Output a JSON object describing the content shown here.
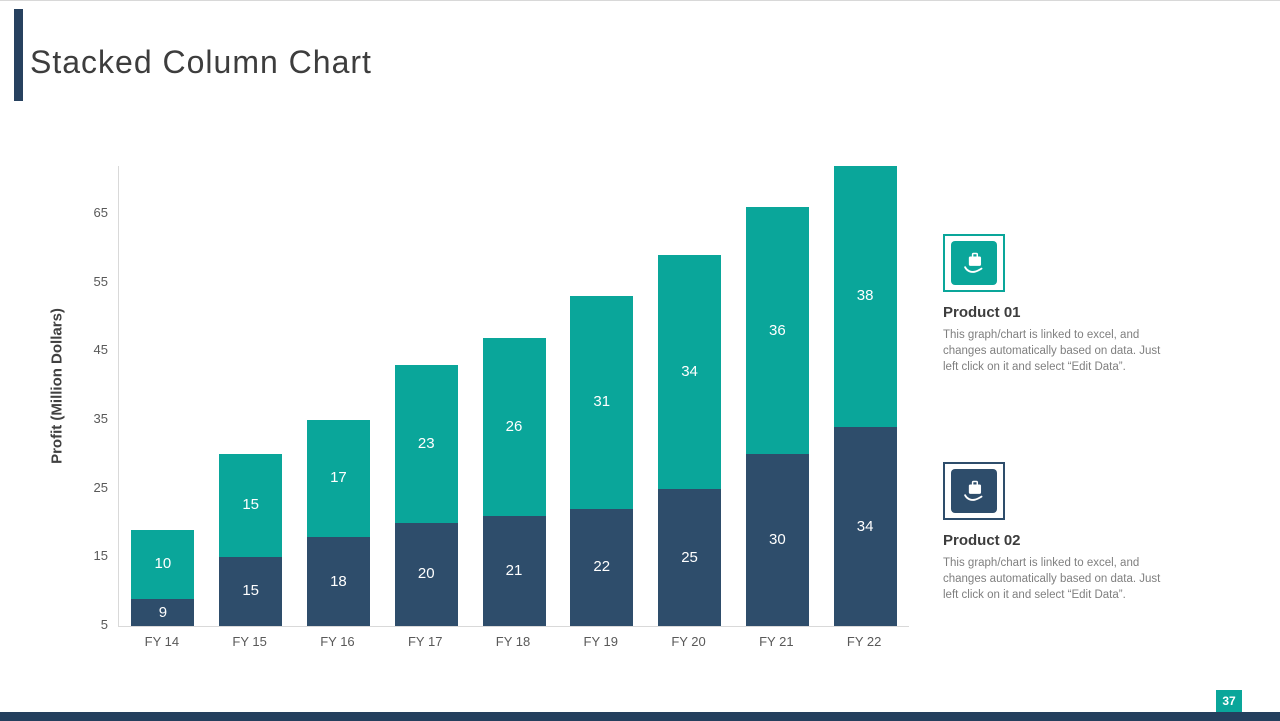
{
  "slide": {
    "title": "Stacked Column Chart",
    "page_number": "37"
  },
  "chart_data": {
    "type": "bar",
    "stacked": true,
    "title": "",
    "ylabel": "Profit  (Million Dollars)",
    "xlabel": "",
    "categories": [
      "FY 14",
      "FY 15",
      "FY 16",
      "FY 17",
      "FY 18",
      "FY 19",
      "FY 20",
      "FY 21",
      "FY 22"
    ],
    "series": [
      {
        "name": "Product 02",
        "color": "#2e4d6b",
        "values": [
          9,
          15,
          18,
          20,
          21,
          22,
          25,
          30,
          34
        ]
      },
      {
        "name": "Product 01",
        "color": "#0aa69a",
        "values": [
          10,
          15,
          17,
          23,
          26,
          31,
          34,
          36,
          38
        ]
      }
    ],
    "y_ticks": [
      5,
      15,
      25,
      35,
      45,
      55,
      65
    ],
    "y_min": 5,
    "y_max": 72,
    "grid": false,
    "legend_position": "right",
    "data_labels": true
  },
  "legend": {
    "items": [
      {
        "title": "Product 01",
        "description": "This graph/chart is linked to excel, and changes automatically based on data. Just left click on it and select “Edit Data”.",
        "icon": "hand-briefcase-icon",
        "color": "#0aa69a"
      },
      {
        "title": "Product 02",
        "description": "This graph/chart is linked to excel, and changes automatically based on data. Just left click on it and select “Edit Data”.",
        "icon": "hand-briefcase-icon",
        "color": "#2e4d6b"
      }
    ]
  },
  "colors": {
    "accent_teal": "#0aa69a",
    "accent_navy": "#2e4d6b",
    "footer_bar": "#24405e",
    "title_text": "#3d3d3d",
    "axis_text": "#595959"
  }
}
